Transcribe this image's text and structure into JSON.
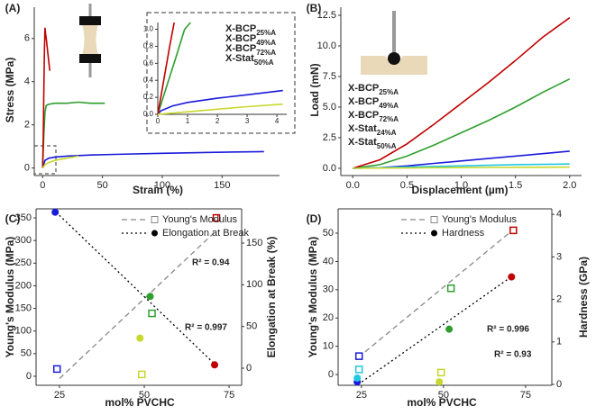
{
  "chart_data": [
    {
      "type": "line",
      "panel": "(A)",
      "xlabel": "Strain (%)",
      "ylabel": "Stress (MPa)",
      "xlim": [
        -7,
        198
      ],
      "ylim": [
        -0.35,
        7.45
      ],
      "xticks": [
        0,
        50,
        100,
        150
      ],
      "yticks": [
        0,
        2,
        4,
        6
      ],
      "series": [
        {
          "color": "#1a1adb",
          "x": [
            0,
            2,
            5,
            10,
            20,
            40,
            60,
            100,
            140,
            185
          ],
          "values": [
            0,
            0.35,
            0.45,
            0.5,
            0.55,
            0.6,
            0.63,
            0.68,
            0.72,
            0.76
          ]
        },
        {
          "color": "#2e9e2e",
          "x": [
            0,
            1,
            2,
            3,
            5,
            10,
            20,
            30,
            40,
            52
          ],
          "values": [
            0,
            1.5,
            2.6,
            2.9,
            2.95,
            3.0,
            3.0,
            3.05,
            3.0,
            3.0
          ]
        },
        {
          "color": "#c00000",
          "x": [
            0,
            0.5,
            1,
            1.5,
            2,
            2.5,
            3,
            4,
            5,
            6
          ],
          "values": [
            0,
            1.5,
            3.5,
            5.5,
            6.5,
            6.2,
            6.0,
            5.5,
            5.0,
            4.5
          ]
        },
        {
          "color": "#c8d82a",
          "x": [
            0,
            2,
            5,
            10,
            20,
            30
          ],
          "values": [
            0,
            0.15,
            0.25,
            0.35,
            0.45,
            0.55
          ]
        }
      ]
    },
    {
      "type": "line",
      "xlim": [
        0,
        4.33
      ],
      "ylim": [
        0,
        1.08
      ],
      "xticks": [
        0,
        1,
        2,
        3,
        4
      ],
      "yticks": [
        {
          "value": 0,
          "label": "0.0"
        },
        0.2,
        0.4,
        0.6,
        0.8,
        {
          "value": 1,
          "label": "1.0"
        }
      ],
      "series": [
        {
          "name": "X-BCP",
          "sub": "25%A",
          "color": "#1a1adb",
          "x": [
            0,
            0.1,
            0.5,
            1,
            2,
            3,
            4.2
          ],
          "values": [
            0,
            0.04,
            0.1,
            0.14,
            0.19,
            0.23,
            0.28
          ]
        },
        {
          "name": "X-BCP",
          "sub": "49%A",
          "color": "#2e9e2e",
          "x": [
            0,
            0.3,
            0.6,
            0.9,
            1.1
          ],
          "values": [
            0,
            0.33,
            0.66,
            1.0,
            1.08
          ]
        },
        {
          "name": "X-BCP",
          "sub": "72%A",
          "color": "#c00000",
          "x": [
            0,
            0.2,
            0.4,
            0.55
          ],
          "values": [
            0,
            0.4,
            0.8,
            1.08
          ]
        },
        {
          "name": "X-Stat",
          "sub": "50%A",
          "color": "#c8d82a",
          "x": [
            0,
            1,
            2,
            3,
            4.2
          ],
          "values": [
            0,
            0.03,
            0.06,
            0.09,
            0.12
          ]
        }
      ]
    },
    {
      "type": "line",
      "panel": "(B)",
      "xlabel": "Displacement (µm)",
      "ylabel": "Load (mN)",
      "xlim": [
        -0.11,
        2.11
      ],
      "ylim": [
        -0.59,
        13.16
      ],
      "xticks": [
        {
          "value": 0,
          "label": "0.0"
        },
        0.5,
        {
          "value": 1,
          "label": "1.0"
        },
        1.5,
        {
          "value": 2,
          "label": "2.0"
        }
      ],
      "yticks": [
        {
          "value": 0,
          "label": "0.0"
        },
        2.5,
        {
          "value": 5,
          "label": "5.0"
        },
        7.5,
        {
          "value": 10,
          "label": "10.0"
        },
        12.5
      ],
      "x": [
        0,
        0.25,
        0.5,
        0.75,
        1,
        1.25,
        1.5,
        1.75,
        2
      ],
      "series": [
        {
          "name": "X-BCP",
          "sub": "25%A",
          "color": "#1a1adb",
          "values": [
            0,
            0.05,
            0.2,
            0.4,
            0.6,
            0.8,
            1.0,
            1.2,
            1.4
          ]
        },
        {
          "name": "X-BCP",
          "sub": "49%A",
          "color": "#2e9e2e",
          "values": [
            0,
            0.3,
            1.0,
            1.9,
            2.9,
            3.9,
            5.0,
            6.2,
            7.3
          ]
        },
        {
          "name": "X-BCP",
          "sub": "72%A",
          "color": "#c00000",
          "values": [
            0,
            0.7,
            2.0,
            3.6,
            5.3,
            7.0,
            8.8,
            10.7,
            12.3
          ]
        },
        {
          "name": "X-Stat",
          "sub": "24%A",
          "color": "#22c8e0",
          "values": [
            0,
            0.05,
            0.1,
            0.15,
            0.2,
            0.25,
            0.3,
            0.32,
            0.35
          ]
        },
        {
          "name": "X-Stat",
          "sub": "50%A",
          "color": "#c8d82a",
          "values": [
            0,
            0.02,
            0.03,
            0.05,
            0.06,
            0.07,
            0.08,
            0.09,
            0.1
          ]
        }
      ]
    },
    {
      "type": "scatter",
      "panel": "(C)",
      "xlabel": "mol% PVCHC",
      "ylabel": "Young's Modulus (MPa)",
      "y2label": "Elongation at Break (%)",
      "xlim": [
        18.1,
        78.7
      ],
      "ylim": [
        -20,
        370
      ],
      "y2lim": [
        -20.5,
        191
      ],
      "xticks": [
        25,
        50,
        75
      ],
      "yticks": [
        0,
        50,
        100,
        150,
        200,
        250,
        300,
        350
      ],
      "y2ticks": [
        0,
        50,
        100,
        150
      ],
      "annotations": [
        "R² = 0.94",
        "R² = 0.997"
      ],
      "series": [
        {
          "name": "Young's Modulus",
          "marker": "square",
          "axis": "y",
          "line_color": "#888888",
          "dash": "6 4",
          "x": [
            24,
            49,
            52,
            71
          ],
          "values": [
            16,
            4,
            139,
            350
          ],
          "colors": [
            "#1a1adb",
            "#c8d82a",
            "#2e9e2e",
            "#c00000"
          ],
          "fit": {
            "x": [
              25,
              71
            ],
            "values": [
              -5,
              320
            ]
          }
        },
        {
          "name": "Elongation at Break",
          "marker": "circle",
          "axis": "y2",
          "line_color": "#000000",
          "dash": "2 3",
          "x": [
            24,
            49,
            52,
            71
          ],
          "values": [
            187,
            36,
            86,
            4
          ],
          "colors": [
            "#1a1adb",
            "#c8d82a",
            "#2e9e2e",
            "#c00000"
          ],
          "fit": {
            "x": [
              24,
              71
            ],
            "values": [
              187,
              4
            ]
          }
        }
      ]
    },
    {
      "type": "scatter",
      "panel": "(D)",
      "xlabel": "mol% PVCHC",
      "ylabel": "Young's Modulus (MPa)",
      "y2label": "Hardness (GPa)",
      "xlim": [
        17.9,
        83
      ],
      "ylim": [
        -3.8,
        58.6
      ],
      "y2lim": [
        -0.02,
        4.13
      ],
      "xticks": [
        25,
        50,
        75
      ],
      "yticks": [
        0,
        10,
        20,
        30,
        40,
        50
      ],
      "y2ticks": [
        0,
        1,
        2,
        3,
        4
      ],
      "annotations": [
        "R² = 0.996",
        "R² = 0.93"
      ],
      "series": [
        {
          "name": "Young's Modulus",
          "marker": "square",
          "axis": "y",
          "line_color": "#888888",
          "dash": "6 4",
          "x": [
            24,
            24,
            49,
            52,
            71
          ],
          "values": [
            6.5,
            1.8,
            0.7,
            30.5,
            51
          ],
          "colors": [
            "#1a1adb",
            "#22c8e0",
            "#c8d82a",
            "#2e9e2e",
            "#c00000"
          ],
          "fit": {
            "x": [
              24,
              71
            ],
            "values": [
              6,
              51
            ]
          }
        },
        {
          "name": "Hardness",
          "marker": "circle",
          "axis": "y2",
          "line_color": "#000000",
          "dash": "2 3",
          "x": [
            24,
            24,
            49,
            52,
            71
          ],
          "values": [
            0.06,
            0.15,
            0.06,
            1.3,
            2.53
          ],
          "colors": [
            "#1a1adb",
            "#22c8e0",
            "#c8d82a",
            "#2e9e2e",
            "#c00000"
          ],
          "fit": {
            "x": [
              24,
              71
            ],
            "values": [
              0,
              2.55
            ]
          }
        }
      ]
    }
  ]
}
